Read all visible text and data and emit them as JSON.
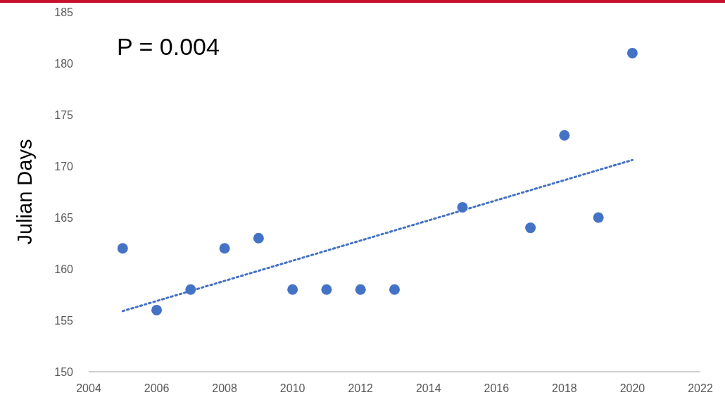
{
  "chart_data": {
    "type": "scatter",
    "ylabel": "Julian Days",
    "annotations": [
      "P = 0.004"
    ],
    "x": [
      2005,
      2006,
      2007,
      2008,
      2009,
      2010,
      2011,
      2012,
      2013,
      2015,
      2017,
      2018,
      2019,
      2020
    ],
    "series": [
      {
        "color": "#4472c4",
        "marker": "circle",
        "values": [
          162,
          156,
          158,
          162,
          163,
          158,
          158,
          158,
          158,
          166,
          164,
          173,
          165,
          181
        ]
      },
      {
        "type": "line",
        "color": "#4472c4",
        "line_style": "dotted",
        "x": [
          2005,
          2020
        ],
        "values": [
          155.9,
          170.6
        ]
      }
    ],
    "xlim": [
      2004,
      2022
    ],
    "xticks": [
      2004,
      2006,
      2008,
      2010,
      2012,
      2014,
      2016,
      2018,
      2020,
      2022
    ],
    "ylim": [
      150,
      185
    ],
    "yticks": [
      150,
      155,
      160,
      165,
      170,
      175,
      180,
      185
    ],
    "grid": false
  }
}
